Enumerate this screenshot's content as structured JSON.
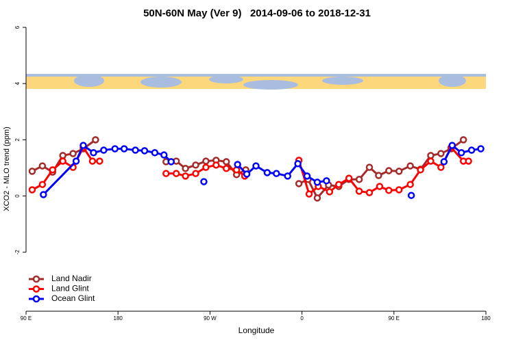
{
  "chart_data": {
    "type": "line",
    "title": "50N-60N May (Ver 9)   2014-09-06 to 2018-12-31",
    "x_label": "Longitude",
    "y_label": "XCO2 - MLO trend (ppm)",
    "xlim": [
      90,
      540
    ],
    "xticks": [
      {
        "value": 90,
        "label": "90 E"
      },
      {
        "value": 180,
        "label": "180"
      },
      {
        "value": 270,
        "label": "90 W"
      },
      {
        "value": 360,
        "label": "0"
      },
      {
        "value": 450,
        "label": "90 E"
      },
      {
        "value": 540,
        "label": "180"
      }
    ],
    "ylim": [
      -4.1,
      6
    ],
    "yticks": [
      -2,
      0,
      2,
      4,
      6
    ],
    "legend": "bottom-left",
    "series": [
      {
        "name": "Land Nadir",
        "color": "#a52a2a",
        "x": [
          96,
          106,
          116,
          126,
          136,
          146,
          158,
          null,
          227,
          237,
          246,
          256,
          266,
          276,
          286,
          296,
          305,
          null,
          357,
          366,
          375,
          386,
          396,
          406,
          416,
          426,
          435,
          445,
          455,
          466,
          476,
          486,
          496,
          506,
          518
        ],
        "values": [
          0.88,
          1.07,
          0.85,
          1.44,
          1.51,
          1.68,
          2.0,
          null,
          1.22,
          1.24,
          0.98,
          1.1,
          1.24,
          1.27,
          1.22,
          0.76,
          0.93,
          null,
          0.44,
          0.59,
          -0.07,
          0.39,
          0.34,
          0.59,
          0.59,
          1.02,
          0.73,
          0.9,
          0.88,
          1.07,
          0.95,
          1.44,
          1.51,
          1.68,
          2.0
        ]
      },
      {
        "name": "Land Glint",
        "color": "#ff0000",
        "x": [
          96,
          106,
          116,
          126,
          136,
          146,
          155,
          162,
          null,
          227,
          237,
          246,
          256,
          266,
          276,
          286,
          296,
          304,
          null,
          357,
          367,
          376,
          387,
          396,
          406,
          416,
          426,
          436,
          445,
          455,
          466,
          476,
          486,
          496,
          506,
          518,
          523
        ],
        "values": [
          0.22,
          0.41,
          0.93,
          1.24,
          1.02,
          1.73,
          1.24,
          1.24,
          null,
          0.8,
          0.8,
          0.71,
          0.8,
          1.02,
          1.1,
          0.98,
          0.93,
          0.71,
          null,
          1.27,
          0.07,
          0.34,
          0.15,
          0.41,
          0.63,
          0.17,
          0.12,
          0.34,
          0.2,
          0.22,
          0.41,
          0.93,
          1.24,
          1.02,
          1.73,
          1.24,
          1.24
        ]
      },
      {
        "name": "Ocean Glint",
        "color": "#0000ff",
        "x": [
          107,
          139,
          146,
          156,
          166,
          177,
          186,
          197,
          206,
          216,
          225,
          232,
          null,
          264,
          null,
          297,
          306,
          315,
          326,
          335,
          346,
          356,
          365,
          375,
          384,
          null,
          467,
          null,
          499,
          507,
          516,
          526,
          535
        ],
        "values": [
          0.05,
          1.24,
          1.8,
          1.54,
          1.63,
          1.68,
          1.68,
          1.63,
          1.61,
          1.54,
          1.46,
          1.22,
          null,
          0.51,
          null,
          1.12,
          0.78,
          1.07,
          0.83,
          0.8,
          0.71,
          1.15,
          0.71,
          0.49,
          0.54,
          null,
          0.02,
          null,
          1.22,
          1.8,
          1.54,
          1.63,
          1.68
        ]
      }
    ]
  }
}
